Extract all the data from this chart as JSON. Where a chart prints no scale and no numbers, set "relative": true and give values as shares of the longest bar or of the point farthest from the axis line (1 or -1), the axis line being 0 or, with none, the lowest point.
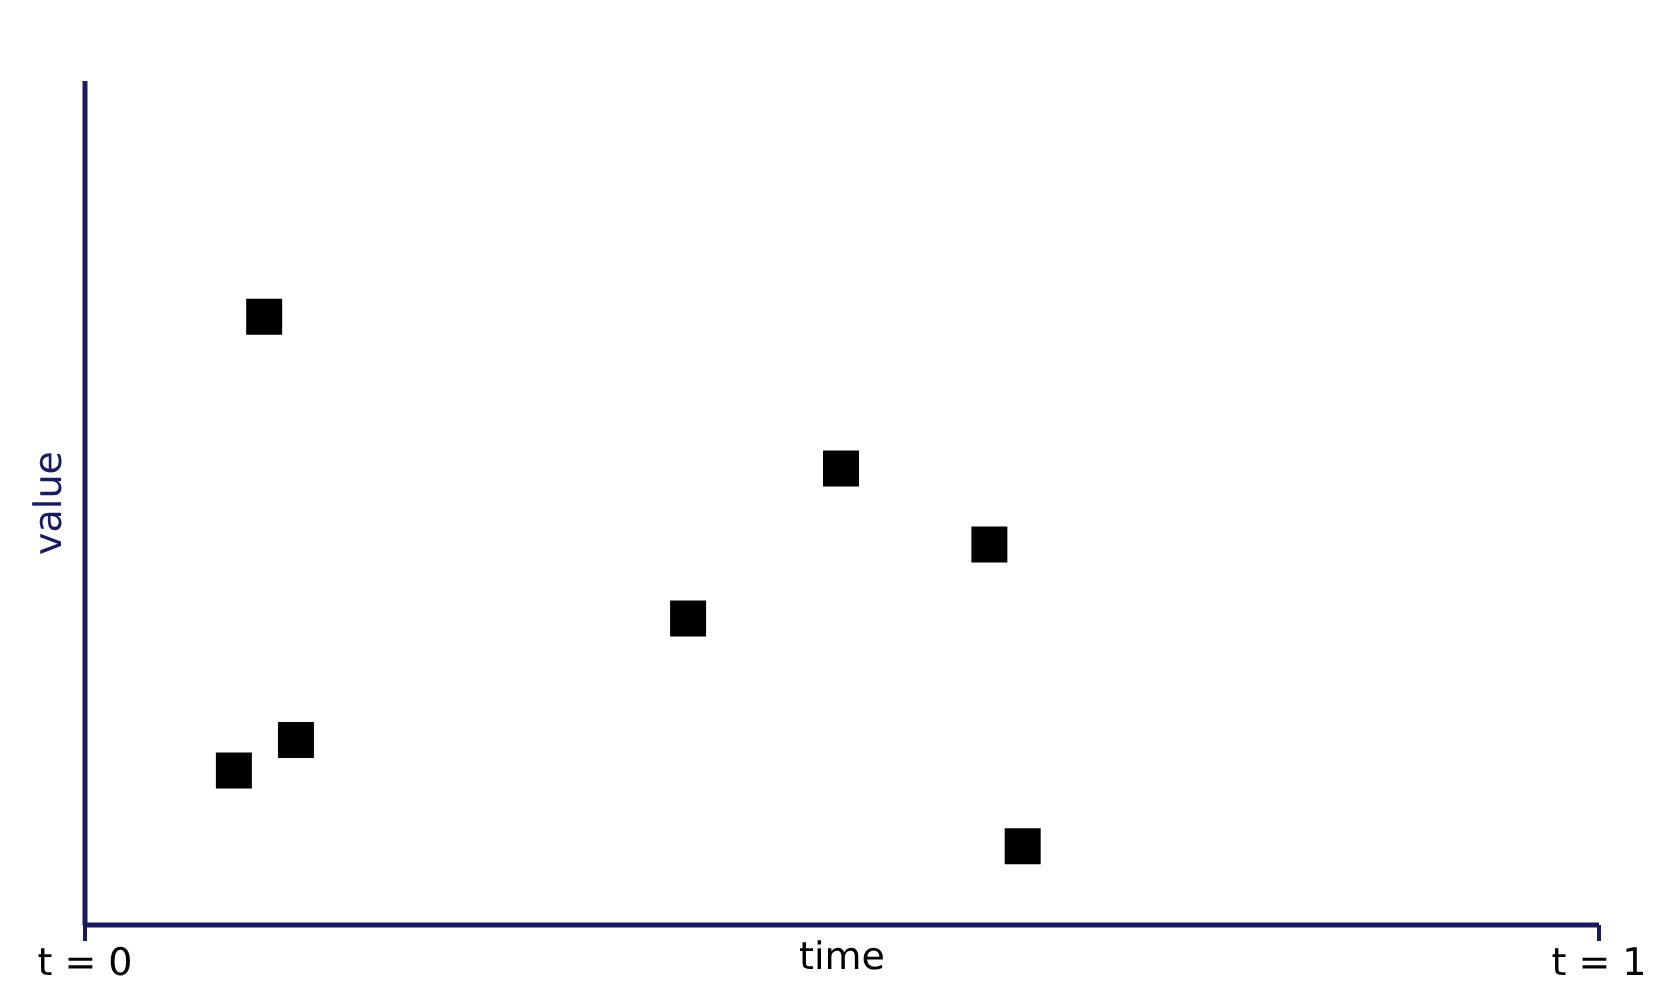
{
  "chart_data": {
    "type": "scatter",
    "relative": true,
    "xlabel": "time",
    "ylabel": "value",
    "marker": "square",
    "xlim": [
      0,
      1
    ],
    "xticks": [
      {
        "value": 0,
        "label": "t = 0"
      },
      {
        "value": 1,
        "label": "t = 1"
      }
    ],
    "x": [
      0.099,
      0.119,
      0.14,
      0.399,
      0.5,
      0.598,
      0.62
    ],
    "series": [
      {
        "color": "#000000",
        "values": [
          0.253,
          1,
          0.303,
          0.503,
          0.75,
          0.625,
          0.128
        ]
      }
    ]
  }
}
